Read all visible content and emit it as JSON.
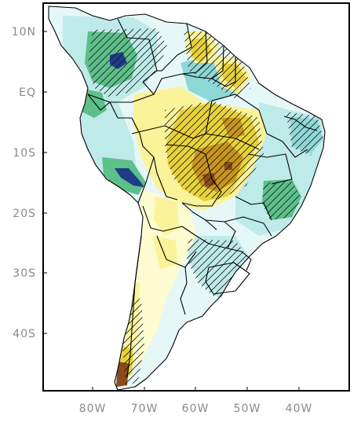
{
  "map": {
    "y_axis_labels": [
      {
        "id": "lat-10n",
        "text": "10N"
      },
      {
        "id": "lat-eq",
        "text": "EQ"
      },
      {
        "id": "lat-10s",
        "text": "10S"
      },
      {
        "id": "lat-20s",
        "text": "20S"
      },
      {
        "id": "lat-30s",
        "text": "30S"
      },
      {
        "id": "lat-40s",
        "text": "40S"
      }
    ],
    "x_axis_labels": [
      {
        "id": "lon-80w",
        "text": "80W"
      },
      {
        "id": "lon-70w",
        "text": "70W"
      },
      {
        "id": "lon-60w",
        "text": "60W"
      },
      {
        "id": "lon-50w",
        "text": "50W"
      },
      {
        "id": "lon-40w",
        "text": "40W"
      }
    ],
    "colors": {
      "dark_brown": "#8b4a1a",
      "brown": "#c8941e",
      "gold": "#e8d23a",
      "yellow": "#fbf39a",
      "pale_yellow": "#fdfbd0",
      "pale_cyan": "#e6f7f7",
      "light_cyan": "#bfeaea",
      "cyan": "#8fd8d8",
      "green": "#5cc08a",
      "dark_blue": "#1f3c88",
      "border": "#000000",
      "tick_text": "#8a8a8a"
    }
  }
}
